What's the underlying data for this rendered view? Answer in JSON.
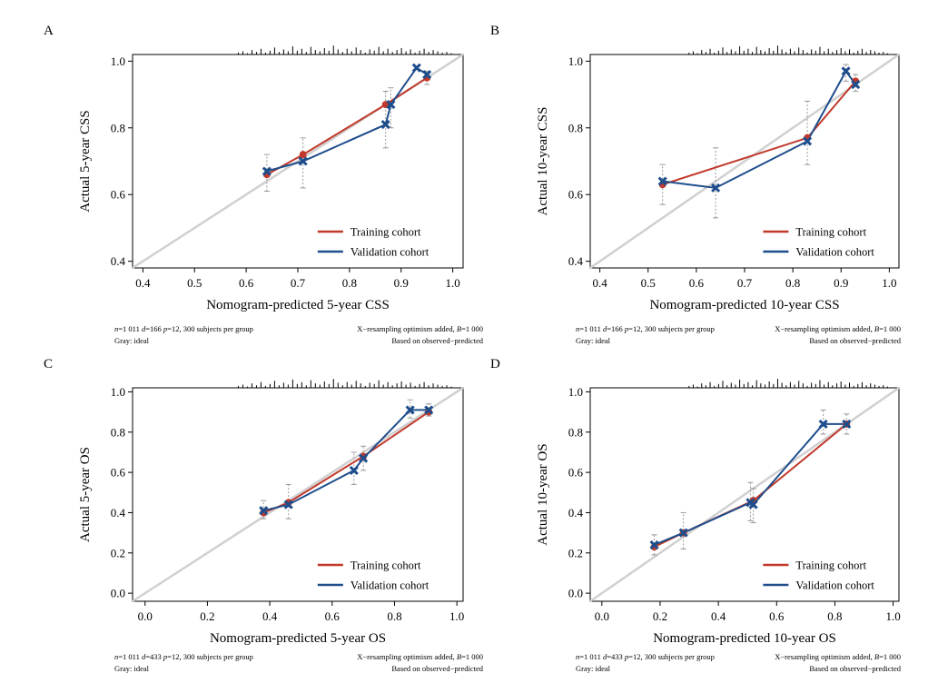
{
  "figure_note": {
    "gray_label": "Gray: ideal",
    "resample_line": "X−resampling optimism added, B=1 000",
    "based_line": "Based on observed−predicted"
  },
  "colors": {
    "training": "#c0392b",
    "validation": "#1f4e8c",
    "ideal": "#d0d0d0",
    "errorbar": "#999999"
  },
  "chart_data": [
    {
      "type": "line",
      "panel": "A",
      "xlabel": "Nomogram-predicted 5-year CSS",
      "ylabel": "Actual 5-year CSS",
      "xlim": [
        0.38,
        1.02
      ],
      "ylim": [
        0.38,
        1.02
      ],
      "xticks": [
        "0.4",
        "0.5",
        "0.6",
        "0.7",
        "0.8",
        "0.9",
        "1.0"
      ],
      "yticks": [
        "0.4",
        "0.6",
        "0.8",
        "1.0"
      ],
      "note": "n=1 011 d=166 p=12, 300 subjects per group",
      "series": [
        {
          "name": "Training cohort",
          "x": [
            0.64,
            0.71,
            0.87,
            0.95
          ],
          "y": [
            0.66,
            0.72,
            0.87,
            0.95
          ]
        },
        {
          "name": "Validation cohort",
          "x": [
            0.64,
            0.71,
            0.87,
            0.88,
            0.93,
            0.95
          ],
          "y": [
            0.67,
            0.7,
            0.81,
            0.87,
            0.98,
            0.96
          ]
        }
      ],
      "errorbars": [
        {
          "x": 0.64,
          "lo": 0.61,
          "hi": 0.72
        },
        {
          "x": 0.71,
          "lo": 0.62,
          "hi": 0.77
        },
        {
          "x": 0.87,
          "lo": 0.74,
          "hi": 0.91
        },
        {
          "x": 0.88,
          "lo": 0.8,
          "hi": 0.92
        },
        {
          "x": 0.95,
          "lo": 0.93,
          "hi": 0.97
        }
      ]
    },
    {
      "type": "line",
      "panel": "B",
      "xlabel": "Nomogram-predicted 10-year CSS",
      "ylabel": "Actual 10-year CSS",
      "xlim": [
        0.38,
        1.02
      ],
      "ylim": [
        0.38,
        1.02
      ],
      "xticks": [
        "0.4",
        "0.5",
        "0.6",
        "0.7",
        "0.8",
        "0.9",
        "1.0"
      ],
      "yticks": [
        "0.4",
        "0.6",
        "0.8",
        "1.0"
      ],
      "note": "n=1 011 d=166 p=12, 300 subjects per group",
      "series": [
        {
          "name": "Training cohort",
          "x": [
            0.53,
            0.83,
            0.93
          ],
          "y": [
            0.63,
            0.77,
            0.94
          ]
        },
        {
          "name": "Validation cohort",
          "x": [
            0.53,
            0.64,
            0.83,
            0.91,
            0.93
          ],
          "y": [
            0.64,
            0.62,
            0.76,
            0.97,
            0.93
          ]
        }
      ],
      "errorbars": [
        {
          "x": 0.53,
          "lo": 0.57,
          "hi": 0.69
        },
        {
          "x": 0.64,
          "lo": 0.53,
          "hi": 0.74
        },
        {
          "x": 0.83,
          "lo": 0.69,
          "hi": 0.88
        },
        {
          "x": 0.91,
          "lo": 0.94,
          "hi": 0.99
        },
        {
          "x": 0.93,
          "lo": 0.91,
          "hi": 0.96
        }
      ]
    },
    {
      "type": "line",
      "panel": "C",
      "xlabel": "Nomogram-predicted 5-year OS",
      "ylabel": "Actual 5-year OS",
      "xlim": [
        -0.04,
        1.02
      ],
      "ylim": [
        -0.04,
        1.02
      ],
      "xticks": [
        "0.0",
        "0.2",
        "0.4",
        "0.6",
        "0.8",
        "1.0"
      ],
      "yticks": [
        "0.0",
        "0.2",
        "0.4",
        "0.6",
        "0.8",
        "1.0"
      ],
      "note": "n=1 011 d=433 p=12, 300 subjects per group",
      "series": [
        {
          "name": "Training cohort",
          "x": [
            0.38,
            0.46,
            0.7,
            0.91
          ],
          "y": [
            0.4,
            0.45,
            0.68,
            0.9
          ]
        },
        {
          "name": "Validation cohort",
          "x": [
            0.38,
            0.46,
            0.67,
            0.7,
            0.85,
            0.91
          ],
          "y": [
            0.41,
            0.44,
            0.61,
            0.67,
            0.91,
            0.91
          ]
        }
      ],
      "errorbars": [
        {
          "x": 0.38,
          "lo": 0.37,
          "hi": 0.46
        },
        {
          "x": 0.46,
          "lo": 0.37,
          "hi": 0.54
        },
        {
          "x": 0.67,
          "lo": 0.54,
          "hi": 0.7
        },
        {
          "x": 0.7,
          "lo": 0.61,
          "hi": 0.73
        },
        {
          "x": 0.85,
          "lo": 0.87,
          "hi": 0.96
        },
        {
          "x": 0.91,
          "lo": 0.88,
          "hi": 0.94
        }
      ]
    },
    {
      "type": "line",
      "panel": "D",
      "xlabel": "Nomogram-predicted 10-year OS",
      "ylabel": "Actual 10-year OS",
      "xlim": [
        -0.04,
        1.02
      ],
      "ylim": [
        -0.04,
        1.02
      ],
      "xticks": [
        "0.0",
        "0.2",
        "0.4",
        "0.6",
        "0.8",
        "1.0"
      ],
      "yticks": [
        "0.0",
        "0.2",
        "0.4",
        "0.6",
        "0.8",
        "1.0"
      ],
      "note": "n=1 011 d=433 p=12, 300 subjects per group",
      "series": [
        {
          "name": "Training cohort",
          "x": [
            0.18,
            0.28,
            0.52,
            0.84
          ],
          "y": [
            0.23,
            0.3,
            0.46,
            0.84
          ]
        },
        {
          "name": "Validation cohort",
          "x": [
            0.18,
            0.28,
            0.51,
            0.52,
            0.76,
            0.84
          ],
          "y": [
            0.24,
            0.3,
            0.45,
            0.44,
            0.84,
            0.84
          ]
        }
      ],
      "errorbars": [
        {
          "x": 0.18,
          "lo": 0.19,
          "hi": 0.29
        },
        {
          "x": 0.28,
          "lo": 0.22,
          "hi": 0.4
        },
        {
          "x": 0.51,
          "lo": 0.36,
          "hi": 0.55
        },
        {
          "x": 0.52,
          "lo": 0.35,
          "hi": 0.52
        },
        {
          "x": 0.76,
          "lo": 0.79,
          "hi": 0.91
        },
        {
          "x": 0.84,
          "lo": 0.79,
          "hi": 0.89
        }
      ]
    }
  ]
}
